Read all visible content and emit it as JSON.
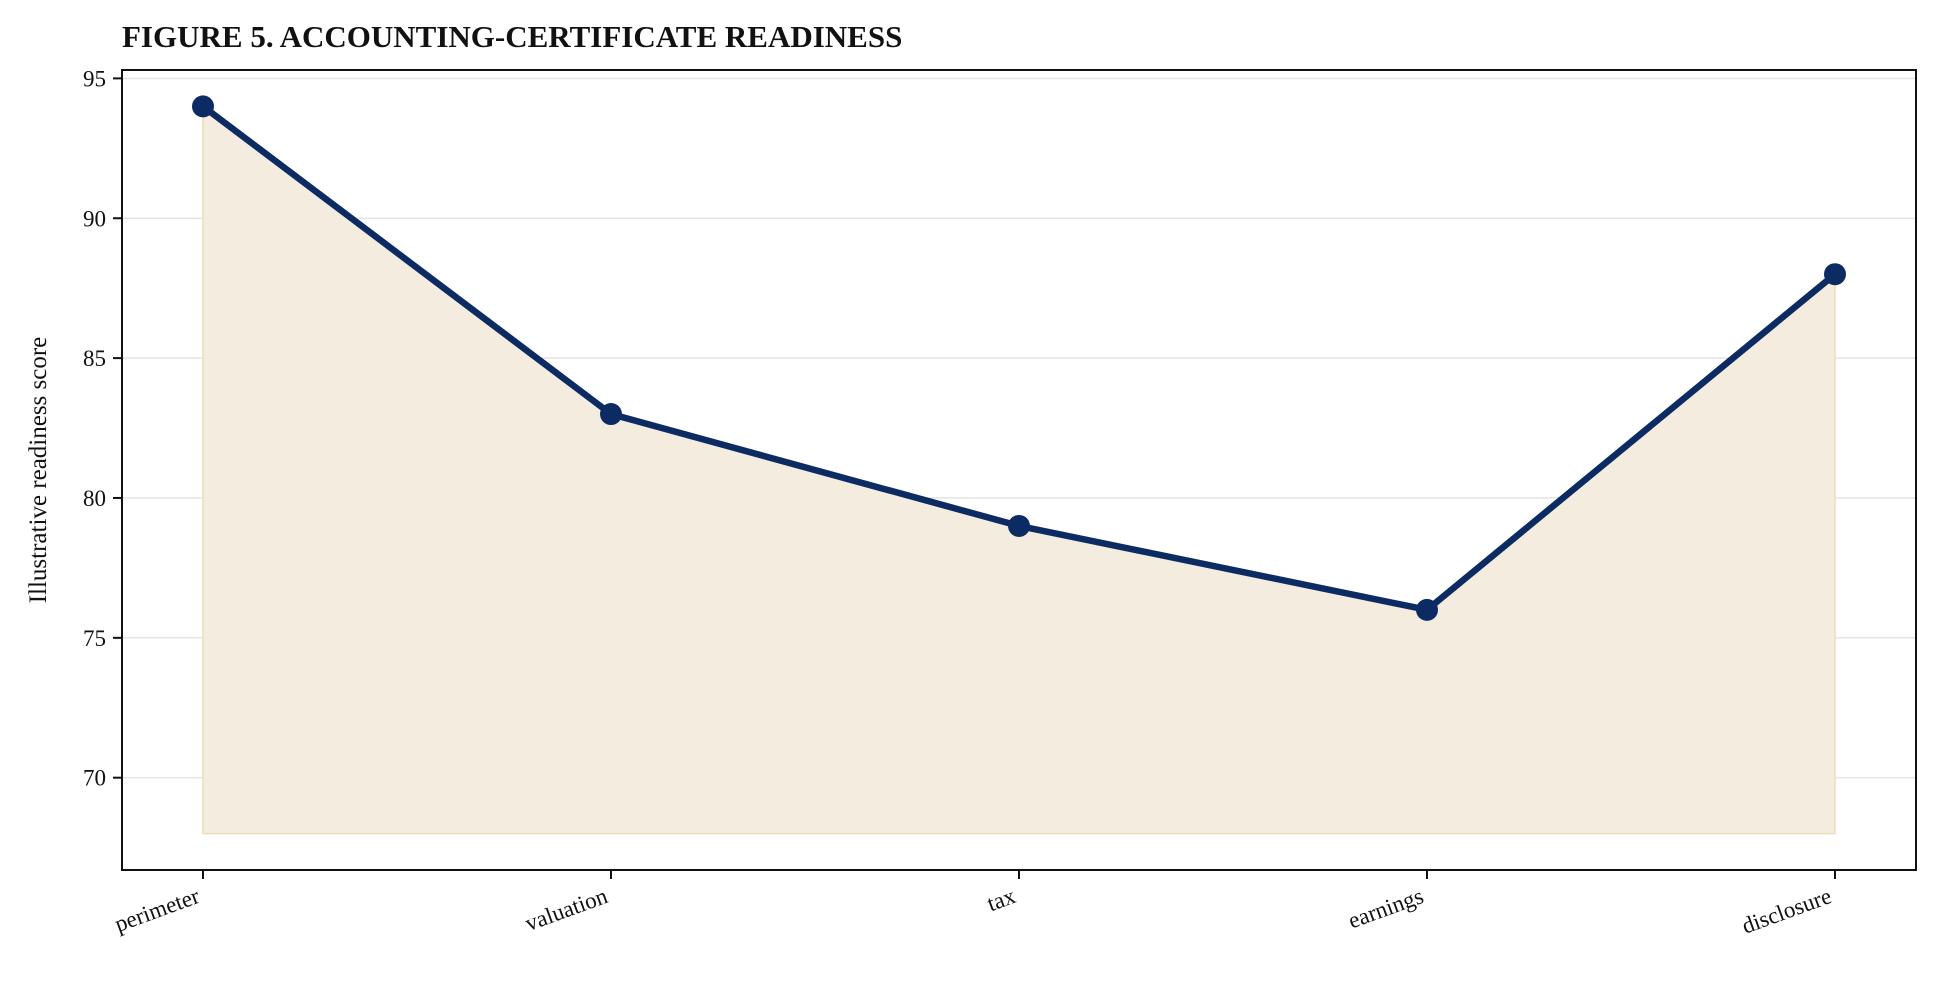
{
  "chart_data": {
    "type": "area",
    "title": "FIGURE 5. ACCOUNTING-CERTIFICATE READINESS",
    "xlabel": "",
    "ylabel": "Illustrative readiness score",
    "categories": [
      "perimeter",
      "valuation",
      "tax",
      "earnings",
      "disclosure"
    ],
    "series": [
      {
        "values": [
          94,
          83,
          79,
          76,
          88
        ]
      }
    ],
    "area_baseline": 68,
    "ylim": [
      66.7,
      95.3
    ],
    "yticks": [
      70,
      75,
      80,
      85,
      90,
      95
    ],
    "grid": "horizontal",
    "legend": "none",
    "colors": {
      "line": "#0d2b63",
      "marker": "#0d2b63",
      "fill": "#f3ecdf",
      "fill_edge": "#ecdcb8",
      "grid": "#e6e6e6",
      "axis": "#111111"
    }
  }
}
